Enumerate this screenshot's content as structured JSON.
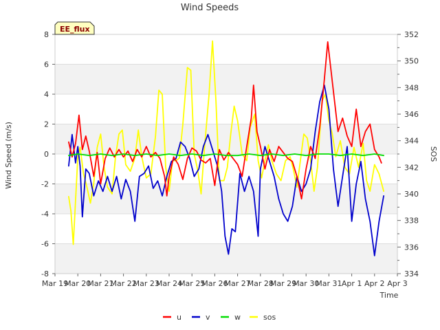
{
  "chart_data": {
    "type": "line",
    "title": "Wind Speeds",
    "badge": "EE_flux",
    "xlabel": "Time",
    "ylabel": "Wind Speed (m/s)",
    "y2label": "SOS",
    "x_range_days": [
      0,
      15
    ],
    "x_ticks": [
      {
        "label": "Mar 19",
        "day": 0
      },
      {
        "label": "Mar 20",
        "day": 1
      },
      {
        "label": "Mar 21",
        "day": 2
      },
      {
        "label": "Mar 22",
        "day": 3
      },
      {
        "label": "Mar 23",
        "day": 4
      },
      {
        "label": "Mar 24",
        "day": 5
      },
      {
        "label": "Mar 25",
        "day": 6
      },
      {
        "label": "Mar 26",
        "day": 7
      },
      {
        "label": "Mar 27",
        "day": 8
      },
      {
        "label": "Mar 28",
        "day": 9
      },
      {
        "label": "Mar 29",
        "day": 10
      },
      {
        "label": "Mar 30",
        "day": 11
      },
      {
        "label": "Mar 31",
        "day": 12
      },
      {
        "label": "Apr 1",
        "day": 13
      },
      {
        "label": "Apr 2",
        "day": 14
      },
      {
        "label": "Apr 3",
        "day": 15
      }
    ],
    "ylim": [
      -8,
      8
    ],
    "y_ticks": [
      8,
      6,
      4,
      2,
      0,
      -2,
      -4,
      -6,
      -8
    ],
    "y2lim": [
      334,
      352
    ],
    "y2_ticks": [
      352,
      350,
      348,
      346,
      344,
      342,
      340,
      338,
      336,
      334
    ],
    "series": [
      {
        "name": "u",
        "color": "#ff0000",
        "axis": "left",
        "points": [
          [
            0.6,
            0.8
          ],
          [
            0.75,
            -0.2
          ],
          [
            0.9,
            0.7
          ],
          [
            1.05,
            2.6
          ],
          [
            1.2,
            0.3
          ],
          [
            1.35,
            1.2
          ],
          [
            1.5,
            0.2
          ],
          [
            1.7,
            -1.5
          ],
          [
            1.85,
            0.1
          ],
          [
            2.0,
            -2.0
          ],
          [
            2.2,
            -0.3
          ],
          [
            2.4,
            0.4
          ],
          [
            2.6,
            -0.2
          ],
          [
            2.8,
            0.3
          ],
          [
            3.0,
            -0.2
          ],
          [
            3.2,
            0.2
          ],
          [
            3.4,
            -0.5
          ],
          [
            3.6,
            0.3
          ],
          [
            3.8,
            -0.2
          ],
          [
            4.0,
            0.5
          ],
          [
            4.2,
            -0.2
          ],
          [
            4.4,
            0.1
          ],
          [
            4.6,
            -0.3
          ],
          [
            4.8,
            -1.5
          ],
          [
            4.9,
            -2.8
          ],
          [
            5.0,
            -1.5
          ],
          [
            5.2,
            -0.2
          ],
          [
            5.4,
            -0.7
          ],
          [
            5.6,
            -1.7
          ],
          [
            5.8,
            -0.3
          ],
          [
            6.0,
            0.4
          ],
          [
            6.2,
            0.2
          ],
          [
            6.4,
            -0.4
          ],
          [
            6.6,
            -0.6
          ],
          [
            6.8,
            -0.3
          ],
          [
            7.0,
            -2.1
          ],
          [
            7.2,
            0.3
          ],
          [
            7.4,
            -0.4
          ],
          [
            7.6,
            0.1
          ],
          [
            7.8,
            -0.3
          ],
          [
            8.0,
            -0.7
          ],
          [
            8.2,
            -1.5
          ],
          [
            8.4,
            0.5
          ],
          [
            8.6,
            2.4
          ],
          [
            8.7,
            4.6
          ],
          [
            8.85,
            1.5
          ],
          [
            9.0,
            0.5
          ],
          [
            9.2,
            -1.0
          ],
          [
            9.4,
            0.3
          ],
          [
            9.6,
            -0.5
          ],
          [
            9.8,
            0.5
          ],
          [
            10.0,
            0.1
          ],
          [
            10.2,
            -0.3
          ],
          [
            10.4,
            -0.5
          ],
          [
            10.6,
            -1.5
          ],
          [
            10.8,
            -3.0
          ],
          [
            11.0,
            -1.0
          ],
          [
            11.2,
            0.5
          ],
          [
            11.4,
            -0.3
          ],
          [
            11.6,
            1.8
          ],
          [
            11.8,
            5.0
          ],
          [
            11.95,
            7.5
          ],
          [
            12.1,
            5.5
          ],
          [
            12.25,
            3.5
          ],
          [
            12.4,
            1.5
          ],
          [
            12.6,
            2.4
          ],
          [
            12.8,
            1.2
          ],
          [
            13.0,
            0.5
          ],
          [
            13.2,
            3.0
          ],
          [
            13.4,
            0.5
          ],
          [
            13.6,
            1.5
          ],
          [
            13.8,
            2.0
          ],
          [
            14.0,
            0.3
          ],
          [
            14.2,
            -0.2
          ],
          [
            14.3,
            -0.6
          ]
        ]
      },
      {
        "name": "v",
        "color": "#0000cc",
        "axis": "left",
        "points": [
          [
            0.6,
            -0.8
          ],
          [
            0.75,
            1.3
          ],
          [
            0.9,
            -0.6
          ],
          [
            1.0,
            0.5
          ],
          [
            1.1,
            -0.8
          ],
          [
            1.2,
            -4.2
          ],
          [
            1.35,
            -1.0
          ],
          [
            1.5,
            -1.3
          ],
          [
            1.7,
            -2.8
          ],
          [
            1.9,
            -1.8
          ],
          [
            2.1,
            -2.5
          ],
          [
            2.3,
            -1.5
          ],
          [
            2.5,
            -2.5
          ],
          [
            2.7,
            -1.5
          ],
          [
            2.9,
            -3.0
          ],
          [
            3.1,
            -1.7
          ],
          [
            3.3,
            -2.5
          ],
          [
            3.5,
            -4.5
          ],
          [
            3.7,
            -1.5
          ],
          [
            3.9,
            -1.3
          ],
          [
            4.1,
            -0.8
          ],
          [
            4.3,
            -2.3
          ],
          [
            4.5,
            -1.8
          ],
          [
            4.7,
            -2.8
          ],
          [
            4.9,
            -1.5
          ],
          [
            5.1,
            -0.5
          ],
          [
            5.3,
            -0.3
          ],
          [
            5.5,
            0.8
          ],
          [
            5.7,
            0.5
          ],
          [
            5.9,
            -0.3
          ],
          [
            6.1,
            -1.5
          ],
          [
            6.3,
            -1.0
          ],
          [
            6.5,
            0.5
          ],
          [
            6.7,
            1.3
          ],
          [
            6.9,
            0.3
          ],
          [
            7.1,
            -0.7
          ],
          [
            7.3,
            -2.5
          ],
          [
            7.45,
            -5.5
          ],
          [
            7.6,
            -6.7
          ],
          [
            7.75,
            -5.0
          ],
          [
            7.9,
            -5.2
          ],
          [
            8.1,
            -1.3
          ],
          [
            8.3,
            -2.5
          ],
          [
            8.5,
            -1.5
          ],
          [
            8.7,
            -2.5
          ],
          [
            8.9,
            -5.5
          ],
          [
            9.0,
            -1.0
          ],
          [
            9.2,
            0.5
          ],
          [
            9.4,
            -0.5
          ],
          [
            9.6,
            -1.5
          ],
          [
            9.8,
            -3.0
          ],
          [
            10.0,
            -4.0
          ],
          [
            10.2,
            -4.5
          ],
          [
            10.4,
            -3.5
          ],
          [
            10.6,
            -1.5
          ],
          [
            10.8,
            -2.5
          ],
          [
            11.0,
            -2.0
          ],
          [
            11.2,
            -1.0
          ],
          [
            11.4,
            1.5
          ],
          [
            11.6,
            3.5
          ],
          [
            11.8,
            4.6
          ],
          [
            12.0,
            3.0
          ],
          [
            12.2,
            -1.0
          ],
          [
            12.4,
            -3.5
          ],
          [
            12.6,
            -1.5
          ],
          [
            12.8,
            0.5
          ],
          [
            13.0,
            -4.5
          ],
          [
            13.2,
            -2.0
          ],
          [
            13.4,
            -0.5
          ],
          [
            13.6,
            -3.0
          ],
          [
            13.8,
            -4.5
          ],
          [
            14.0,
            -6.8
          ],
          [
            14.2,
            -4.5
          ],
          [
            14.4,
            -2.8
          ]
        ]
      },
      {
        "name": "w",
        "color": "#00dd00",
        "axis": "left",
        "points": [
          [
            0.6,
            -0.1
          ],
          [
            1.0,
            0.0
          ],
          [
            1.5,
            -0.1
          ],
          [
            2.0,
            0.0
          ],
          [
            2.5,
            -0.1
          ],
          [
            3.0,
            0.0
          ],
          [
            3.5,
            -0.1
          ],
          [
            4.0,
            0.0
          ],
          [
            4.5,
            -0.1
          ],
          [
            5.0,
            0.0
          ],
          [
            5.5,
            -0.1
          ],
          [
            6.0,
            0.0
          ],
          [
            6.5,
            -0.1
          ],
          [
            7.0,
            0.0
          ],
          [
            7.5,
            -0.1
          ],
          [
            8.0,
            -0.1
          ],
          [
            8.5,
            0.0
          ],
          [
            9.0,
            -0.1
          ],
          [
            9.5,
            0.0
          ],
          [
            10.0,
            -0.1
          ],
          [
            10.5,
            0.0
          ],
          [
            11.0,
            -0.1
          ],
          [
            11.5,
            0.0
          ],
          [
            12.0,
            0.0
          ],
          [
            12.5,
            -0.1
          ],
          [
            13.0,
            0.0
          ],
          [
            13.5,
            -0.1
          ],
          [
            14.0,
            0.0
          ],
          [
            14.4,
            -0.1
          ]
        ]
      },
      {
        "name": "sos",
        "color": "#ffff00",
        "axis": "right",
        "points": [
          [
            0.6,
            339.8
          ],
          [
            0.7,
            338.7
          ],
          [
            0.8,
            336.2
          ],
          [
            0.9,
            339.5
          ],
          [
            1.0,
            342.8
          ],
          [
            1.1,
            343.5
          ],
          [
            1.25,
            341.5
          ],
          [
            1.4,
            340.5
          ],
          [
            1.55,
            339.3
          ],
          [
            1.7,
            340.8
          ],
          [
            1.85,
            343.5
          ],
          [
            2.0,
            344.5
          ],
          [
            2.15,
            342.0
          ],
          [
            2.3,
            340.5
          ],
          [
            2.5,
            340.0
          ],
          [
            2.65,
            342.8
          ],
          [
            2.8,
            344.5
          ],
          [
            2.95,
            344.8
          ],
          [
            3.1,
            342.2
          ],
          [
            3.3,
            341.7
          ],
          [
            3.5,
            342.7
          ],
          [
            3.65,
            344.8
          ],
          [
            3.8,
            342.8
          ],
          [
            4.0,
            341.2
          ],
          [
            4.2,
            341.5
          ],
          [
            4.4,
            344.3
          ],
          [
            4.55,
            347.8
          ],
          [
            4.7,
            347.5
          ],
          [
            4.85,
            342.0
          ],
          [
            5.0,
            340.2
          ],
          [
            5.15,
            342.5
          ],
          [
            5.3,
            342.5
          ],
          [
            5.45,
            342.7
          ],
          [
            5.6,
            345.2
          ],
          [
            5.8,
            349.5
          ],
          [
            5.95,
            349.3
          ],
          [
            6.1,
            343.0
          ],
          [
            6.25,
            341.8
          ],
          [
            6.4,
            340.0
          ],
          [
            6.55,
            343.5
          ],
          [
            6.75,
            347.5
          ],
          [
            6.9,
            351.5
          ],
          [
            7.05,
            347.0
          ],
          [
            7.2,
            341.0
          ],
          [
            7.4,
            341.0
          ],
          [
            7.55,
            342.0
          ],
          [
            7.7,
            344.5
          ],
          [
            7.85,
            346.6
          ],
          [
            8.0,
            345.5
          ],
          [
            8.2,
            343.0
          ],
          [
            8.4,
            342.5
          ],
          [
            8.55,
            345.0
          ],
          [
            8.75,
            346.0
          ],
          [
            8.9,
            342.5
          ],
          [
            9.05,
            341.2
          ],
          [
            9.2,
            342.5
          ],
          [
            9.35,
            343.7
          ],
          [
            9.5,
            342.5
          ],
          [
            9.7,
            341.5
          ],
          [
            9.9,
            341.0
          ],
          [
            10.1,
            342.5
          ],
          [
            10.3,
            342.8
          ],
          [
            10.45,
            341.8
          ],
          [
            10.6,
            340.5
          ],
          [
            10.75,
            342.5
          ],
          [
            10.9,
            344.5
          ],
          [
            11.05,
            344.2
          ],
          [
            11.2,
            342.5
          ],
          [
            11.35,
            340.2
          ],
          [
            11.5,
            342.0
          ],
          [
            11.7,
            347.0
          ],
          [
            11.85,
            347.5
          ],
          [
            12.0,
            345.5
          ],
          [
            12.15,
            344.5
          ],
          [
            12.3,
            342.8
          ],
          [
            12.5,
            344.0
          ],
          [
            12.7,
            342.0
          ],
          [
            12.9,
            341.5
          ],
          [
            13.1,
            343.5
          ],
          [
            13.3,
            342.0
          ],
          [
            13.5,
            343.8
          ],
          [
            13.65,
            341.0
          ],
          [
            13.8,
            340.2
          ],
          [
            14.0,
            342.2
          ],
          [
            14.2,
            341.5
          ],
          [
            14.4,
            340.2
          ]
        ]
      }
    ]
  }
}
